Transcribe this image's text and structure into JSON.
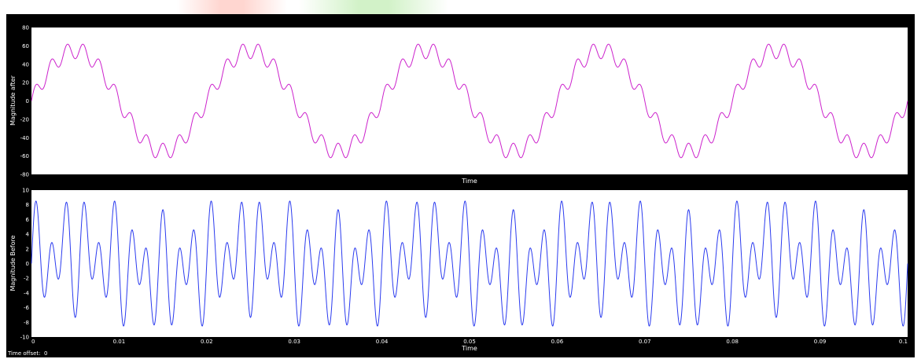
{
  "scope": {
    "time_offset_label": "Time offset:",
    "time_offset_value": "0"
  },
  "colors": {
    "frame": "#000000",
    "plot_bg": "#ffffff",
    "text": "#ffffff",
    "after_trace": "#cc22cc",
    "before_trace": "#2b3bef"
  },
  "chart_data": [
    {
      "type": "line",
      "title": "",
      "xlabel": "Time",
      "ylabel": "Magnitude after",
      "xlim": [
        0,
        0.1
      ],
      "ylim": [
        -80,
        80
      ],
      "yticks": [
        80,
        60,
        40,
        20,
        0,
        -20,
        -40,
        -60,
        -80
      ],
      "xticks": [],
      "grid": false,
      "series": [
        {
          "color": "#cc22cc",
          "x": [
            0,
            0.0025,
            0.005,
            0.0075,
            0.01,
            0.0125,
            0.015,
            0.0175,
            0.02,
            0.0225,
            0.025,
            0.0275,
            0.03,
            0.0325,
            0.035,
            0.0375,
            0.04,
            0.0425,
            0.045,
            0.0475,
            0.05,
            0.0525,
            0.055,
            0.0575,
            0.06,
            0.0625,
            0.065,
            0.0675,
            0.07,
            0.0725,
            0.075,
            0.0775,
            0.08,
            0.0825,
            0.085,
            0.0875,
            0.09,
            0.0925,
            0.095,
            0.0975,
            0.1
          ],
          "y": [
            0,
            38,
            55,
            38,
            0,
            -38,
            -55,
            -38,
            0,
            38,
            55,
            38,
            0,
            -38,
            -55,
            -38,
            0,
            38,
            55,
            38,
            0,
            -38,
            -55,
            -38,
            0,
            38,
            55,
            38,
            0,
            -38,
            -55,
            -38,
            0,
            38,
            55,
            38,
            0,
            -38,
            -55,
            -38,
            0
          ],
          "model": {
            "fundamental_hz": 50,
            "fundamental_amp": 55,
            "ripple_hz": 550,
            "ripple_amp": 9
          }
        }
      ]
    },
    {
      "type": "line",
      "title": "",
      "xlabel": "Time",
      "ylabel": "Magnitude Before",
      "xlim": [
        0,
        0.1
      ],
      "ylim": [
        -10,
        10
      ],
      "yticks": [
        10,
        8,
        6,
        4,
        2,
        0,
        -2,
        -4,
        -6,
        -8,
        -10
      ],
      "xticks": [
        0,
        0.01,
        0.02,
        0.03,
        0.04,
        0.05,
        0.06,
        0.07,
        0.08,
        0.09,
        0.1
      ],
      "grid": false,
      "series": [
        {
          "color": "#2b3bef",
          "x": [
            0,
            0.01,
            0.02,
            0.03,
            0.04,
            0.05,
            0.06,
            0.07,
            0.08,
            0.09,
            0.1
          ],
          "y": [
            0,
            0,
            0,
            0,
            0,
            0,
            0,
            0,
            0,
            0,
            0
          ],
          "peak_abs": 8.5,
          "model": {
            "components": [
              {
                "hz": 550,
                "amp": 4.5
              },
              {
                "hz": 350,
                "amp": 3
              },
              {
                "hz": 50,
                "amp": 1.2
              }
            ]
          }
        }
      ]
    }
  ]
}
